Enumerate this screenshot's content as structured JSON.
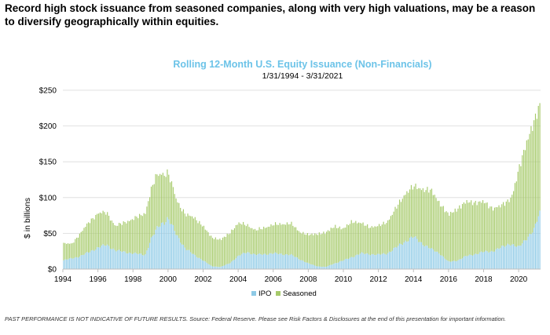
{
  "headline": "Record high stock issuance from seasoned companies, along with very high valuations, may be a reason to diversify geographically within equities.",
  "footnote": "PAST PERFORMANCE IS NOT INDICATIVE OF FUTURE RESULTS. Source: Federal Reserve. Please see Risk Factors & Disclosures at the end of this presentation for important information.",
  "colors": {
    "ipo": "#8ecae6",
    "seasoned": "#a6ca6a",
    "title": "#6cc3e8",
    "grid": "#d9d9d9"
  },
  "chart_data": {
    "type": "bar",
    "stacked": true,
    "title": "Rolling 12-Month U.S. Equity Issuance (Non-Financials)",
    "subtitle": "1/31/1994 - 3/31/2021",
    "ylabel": "$ in billions",
    "xlabel": "",
    "ylim": [
      0,
      250
    ],
    "xlim": [
      1994,
      2021.25
    ],
    "yticks": [
      "$0",
      "$50",
      "$100",
      "$150",
      "$200",
      "$250"
    ],
    "xticks": [
      "1994",
      "1996",
      "1998",
      "2000",
      "2002",
      "2004",
      "2006",
      "2008",
      "2010",
      "2012",
      "2014",
      "2016",
      "2018",
      "2020"
    ],
    "grid": true,
    "legend_position": "bottom-center",
    "frequency": "monthly",
    "series": [
      {
        "name": "IPO",
        "anchors": [
          [
            1994.0,
            12
          ],
          [
            1995.0,
            18
          ],
          [
            1996.0,
            30
          ],
          [
            1996.5,
            34
          ],
          [
            1997.0,
            26
          ],
          [
            1998.0,
            22
          ],
          [
            1998.7,
            20
          ],
          [
            1999.0,
            40
          ],
          [
            1999.5,
            62
          ],
          [
            2000.0,
            70
          ],
          [
            2000.5,
            48
          ],
          [
            2001.0,
            28
          ],
          [
            2002.0,
            12
          ],
          [
            2002.5,
            4
          ],
          [
            2003.0,
            3
          ],
          [
            2003.5,
            8
          ],
          [
            2004.0,
            18
          ],
          [
            2004.5,
            24
          ],
          [
            2005.0,
            20
          ],
          [
            2006.0,
            22
          ],
          [
            2007.0,
            20
          ],
          [
            2008.0,
            8
          ],
          [
            2008.5,
            4
          ],
          [
            2009.0,
            3
          ],
          [
            2009.5,
            8
          ],
          [
            2010.0,
            12
          ],
          [
            2011.0,
            22
          ],
          [
            2012.0,
            20
          ],
          [
            2012.5,
            22
          ],
          [
            2013.0,
            30
          ],
          [
            2013.6,
            40
          ],
          [
            2014.0,
            45
          ],
          [
            2014.5,
            36
          ],
          [
            2015.0,
            28
          ],
          [
            2015.5,
            22
          ],
          [
            2016.0,
            10
          ],
          [
            2016.5,
            12
          ],
          [
            2017.0,
            18
          ],
          [
            2018.0,
            24
          ],
          [
            2018.5,
            25
          ],
          [
            2019.0,
            30
          ],
          [
            2019.5,
            36
          ],
          [
            2020.0,
            30
          ],
          [
            2020.5,
            45
          ],
          [
            2020.9,
            55
          ],
          [
            2021.17,
            78
          ]
        ]
      },
      {
        "name": "Seasoned",
        "anchors": [
          [
            1994.0,
            24
          ],
          [
            1994.5,
            20
          ],
          [
            1995.0,
            32
          ],
          [
            1995.5,
            42
          ],
          [
            1996.0,
            48
          ],
          [
            1996.5,
            45
          ],
          [
            1997.0,
            34
          ],
          [
            1998.0,
            48
          ],
          [
            1998.7,
            58
          ],
          [
            1999.0,
            68
          ],
          [
            1999.3,
            75
          ],
          [
            1999.6,
            70
          ],
          [
            2000.0,
            64
          ],
          [
            2000.5,
            48
          ],
          [
            2001.0,
            48
          ],
          [
            2001.5,
            52
          ],
          [
            2002.0,
            48
          ],
          [
            2002.5,
            40
          ],
          [
            2003.0,
            38
          ],
          [
            2003.5,
            42
          ],
          [
            2004.0,
            46
          ],
          [
            2004.5,
            38
          ],
          [
            2005.0,
            34
          ],
          [
            2006.0,
            40
          ],
          [
            2007.0,
            44
          ],
          [
            2007.5,
            38
          ],
          [
            2008.0,
            40
          ],
          [
            2008.5,
            45
          ],
          [
            2009.0,
            48
          ],
          [
            2009.5,
            52
          ],
          [
            2010.0,
            44
          ],
          [
            2010.5,
            50
          ],
          [
            2011.0,
            42
          ],
          [
            2011.5,
            38
          ],
          [
            2012.0,
            40
          ],
          [
            2012.5,
            44
          ],
          [
            2013.0,
            55
          ],
          [
            2013.6,
            68
          ],
          [
            2014.0,
            70
          ],
          [
            2014.5,
            76
          ],
          [
            2015.0,
            82
          ],
          [
            2015.5,
            70
          ],
          [
            2016.0,
            66
          ],
          [
            2016.5,
            72
          ],
          [
            2017.0,
            76
          ],
          [
            2017.5,
            72
          ],
          [
            2018.0,
            70
          ],
          [
            2018.5,
            60
          ],
          [
            2019.0,
            58
          ],
          [
            2019.5,
            62
          ],
          [
            2019.7,
            75
          ],
          [
            2020.0,
            108
          ],
          [
            2020.4,
            132
          ],
          [
            2020.7,
            145
          ],
          [
            2020.9,
            150
          ],
          [
            2021.17,
            150
          ]
        ]
      }
    ]
  }
}
